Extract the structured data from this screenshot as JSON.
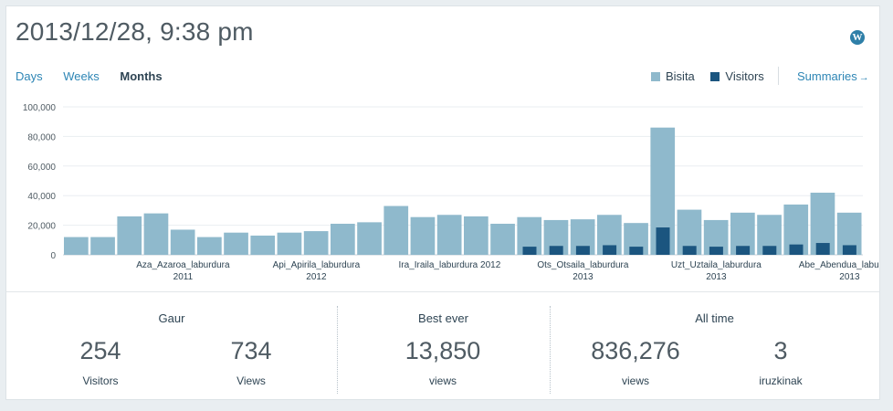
{
  "header": {
    "title": "2013/12/28, 9:38 pm",
    "wp_icon": "wordpress-icon",
    "wp_glyph": "W"
  },
  "tabs": [
    {
      "label": "Days",
      "active": false
    },
    {
      "label": "Weeks",
      "active": false
    },
    {
      "label": "Months",
      "active": true
    }
  ],
  "legend": {
    "bisita": "Bisita",
    "visitors": "Visitors",
    "bisita_color": "#8fb9cc",
    "visitors_color": "#1b557f"
  },
  "summaries": {
    "label": "Summaries",
    "arrow": "→"
  },
  "chart_data": {
    "type": "bar",
    "ylim": [
      0,
      100000
    ],
    "yticks": [
      0,
      20000,
      40000,
      60000,
      80000,
      100000
    ],
    "ytick_labels": [
      "0",
      "20,000",
      "40,000",
      "60,000",
      "80,000",
      "100,000"
    ],
    "grid": true,
    "series": [
      {
        "name": "Bisita",
        "color": "#8fb9cc",
        "values": [
          12000,
          12000,
          26000,
          28000,
          17000,
          12000,
          15000,
          13000,
          15000,
          16000,
          21000,
          22000,
          33000,
          25500,
          27000,
          26000,
          21000,
          25500,
          23500,
          24000,
          27000,
          21500,
          86000,
          30500,
          23500,
          28500,
          27000,
          34000,
          42000,
          28500
        ]
      },
      {
        "name": "Visitors",
        "color": "#1b557f",
        "values": [
          0,
          0,
          0,
          0,
          0,
          0,
          0,
          0,
          0,
          0,
          0,
          0,
          0,
          0,
          0,
          0,
          0,
          5500,
          6000,
          6000,
          6500,
          5500,
          18500,
          6000,
          5500,
          6000,
          6000,
          7000,
          8000,
          6500
        ]
      }
    ],
    "xtick_labels": [
      {
        "index": 4,
        "line1": "Aza_Azaroa_laburdura",
        "line2": "2011"
      },
      {
        "index": 9,
        "line1": "Api_Apirila_laburdura",
        "line2": "2012"
      },
      {
        "index": 14,
        "line1": "Ira_Iraila_laburdura 2012",
        "line2": ""
      },
      {
        "index": 19,
        "line1": "Ots_Otsaila_laburdura",
        "line2": "2013"
      },
      {
        "index": 24,
        "line1": "Uzt_Uztaila_laburdura",
        "line2": "2013"
      },
      {
        "index": 29,
        "line1": "Abe_Abendua_laburdura",
        "line2": "2013"
      }
    ]
  },
  "stats": {
    "today": {
      "title": "Gaur",
      "visitors_value": "254",
      "visitors_label": "Visitors",
      "views_value": "734",
      "views_label": "Views"
    },
    "best": {
      "title": "Best ever",
      "value": "13,850",
      "label": "views"
    },
    "alltime": {
      "title": "All time",
      "views_value": "836,276",
      "views_label": "views",
      "comments_value": "3",
      "comments_label": "iruzkinak"
    }
  }
}
